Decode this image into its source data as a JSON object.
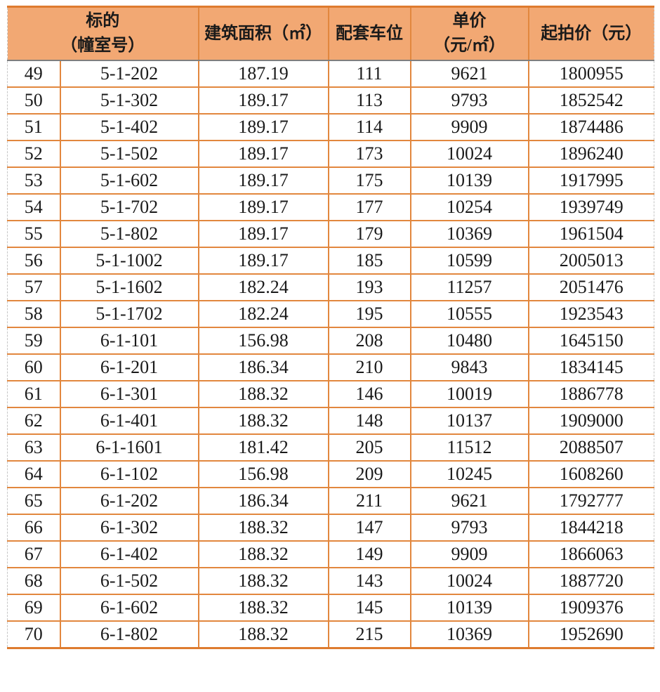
{
  "colors": {
    "header_bg": "#F2A873",
    "grid_border": "#E2873E",
    "header_top_border": "#DE7B2F",
    "header_bottom_border": "#7F7F7F",
    "outer_dashed_border": "#C6C6C6",
    "text": "#1A1A1A"
  },
  "table": {
    "header": {
      "target_line1": "标的",
      "target_line2": "（幢室号）",
      "area": "建筑面积（㎡）",
      "parking": "配套车位",
      "unit_price_line1": "单价",
      "unit_price_line2": "（元/㎡）",
      "start_price": "起拍价（元）"
    },
    "columns": [
      "no",
      "room",
      "area",
      "parking",
      "unit_price",
      "start_price"
    ],
    "rows": [
      [
        "49",
        "5-1-202",
        "187.19",
        "111",
        "9621",
        "1800955"
      ],
      [
        "50",
        "5-1-302",
        "189.17",
        "113",
        "9793",
        "1852542"
      ],
      [
        "51",
        "5-1-402",
        "189.17",
        "114",
        "9909",
        "1874486"
      ],
      [
        "52",
        "5-1-502",
        "189.17",
        "173",
        "10024",
        "1896240"
      ],
      [
        "53",
        "5-1-602",
        "189.17",
        "175",
        "10139",
        "1917995"
      ],
      [
        "54",
        "5-1-702",
        "189.17",
        "177",
        "10254",
        "1939749"
      ],
      [
        "55",
        "5-1-802",
        "189.17",
        "179",
        "10369",
        "1961504"
      ],
      [
        "56",
        "5-1-1002",
        "189.17",
        "185",
        "10599",
        "2005013"
      ],
      [
        "57",
        "5-1-1602",
        "182.24",
        "193",
        "11257",
        "2051476"
      ],
      [
        "58",
        "5-1-1702",
        "182.24",
        "195",
        "10555",
        "1923543"
      ],
      [
        "59",
        "6-1-101",
        "156.98",
        "208",
        "10480",
        "1645150"
      ],
      [
        "60",
        "6-1-201",
        "186.34",
        "210",
        "9843",
        "1834145"
      ],
      [
        "61",
        "6-1-301",
        "188.32",
        "146",
        "10019",
        "1886778"
      ],
      [
        "62",
        "6-1-401",
        "188.32",
        "148",
        "10137",
        "1909000"
      ],
      [
        "63",
        "6-1-1601",
        "181.42",
        "205",
        "11512",
        "2088507"
      ],
      [
        "64",
        "6-1-102",
        "156.98",
        "209",
        "10245",
        "1608260"
      ],
      [
        "65",
        "6-1-202",
        "186.34",
        "211",
        "9621",
        "1792777"
      ],
      [
        "66",
        "6-1-302",
        "188.32",
        "147",
        "9793",
        "1844218"
      ],
      [
        "67",
        "6-1-402",
        "188.32",
        "149",
        "9909",
        "1866063"
      ],
      [
        "68",
        "6-1-502",
        "188.32",
        "143",
        "10024",
        "1887720"
      ],
      [
        "69",
        "6-1-602",
        "188.32",
        "145",
        "10139",
        "1909376"
      ],
      [
        "70",
        "6-1-802",
        "188.32",
        "215",
        "10369",
        "1952690"
      ]
    ]
  }
}
